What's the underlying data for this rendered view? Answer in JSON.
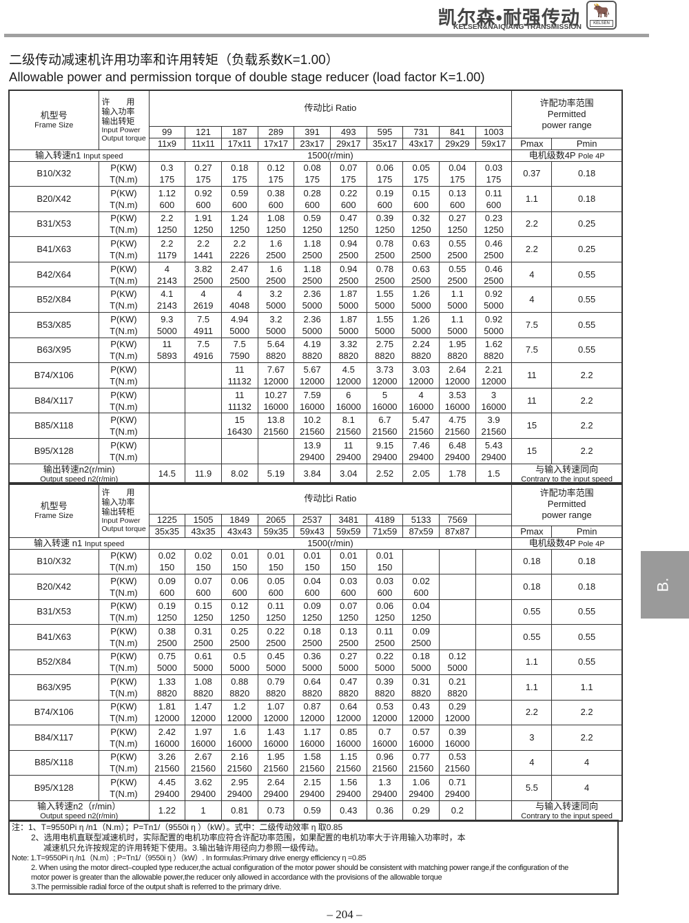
{
  "header": {
    "brand_cn": "凯尔森•耐强传动",
    "brand_en": "KELSEN&NAIQIANG TRANSMISSION",
    "logo_text": "KELSEN"
  },
  "title_cn": "二级传动减速机许用功率和许用转矩（负载系数K=1.00）",
  "title_en": "Allowable power and permission torque of double stage reducer (load factor K=1.00)",
  "labels": {
    "p": "P(KW)",
    "t": "T(N.m)"
  },
  "tables": [
    {
      "frame_cn": "机型号",
      "frame_en": "Frame Size",
      "lh1": "许　　用",
      "lh2": "输入功率",
      "lh3": "输出转矩",
      "lh4": "Input Power",
      "lh5": "Output torque",
      "ratio_title": "传动比i Ratio",
      "permitted_cn": "许配功率范围",
      "permitted_en1": "Permitted",
      "permitted_en2": "power range",
      "pmax": "Pmax",
      "pmin": "Pmin",
      "input_speed_cn": "输入转速n1",
      "input_speed_en": "Input speed",
      "input_speed": "1500(r/min)",
      "pole_cn": "电机级数4P",
      "pole_en": "Pole 4P",
      "ratios": [
        "99",
        "121",
        "187",
        "289",
        "391",
        "493",
        "595",
        "731",
        "841",
        "1003"
      ],
      "sizes": [
        "11x9",
        "11x11",
        "17x11",
        "17x17",
        "23x17",
        "29x17",
        "35x17",
        "43x17",
        "29x29",
        "59x17"
      ],
      "rows": [
        {
          "frame": "B10/X32",
          "p": [
            "0.3",
            "0.27",
            "0.18",
            "0.12",
            "0.08",
            "0.07",
            "0.06",
            "0.05",
            "0.04",
            "0.03"
          ],
          "t": [
            "175",
            "175",
            "175",
            "175",
            "175",
            "175",
            "175",
            "175",
            "175",
            "175"
          ],
          "pmax": "0.37",
          "pmin": "0.18"
        },
        {
          "frame": "B20/X42",
          "p": [
            "1.12",
            "0.92",
            "0.59",
            "0.38",
            "0.28",
            "0.22",
            "0.19",
            "0.15",
            "0.13",
            "0.11"
          ],
          "t": [
            "600",
            "600",
            "600",
            "600",
            "600",
            "600",
            "600",
            "600",
            "600",
            "600"
          ],
          "pmax": "1.1",
          "pmin": "0.18"
        },
        {
          "frame": "B31/X53",
          "p": [
            "2.2",
            "1.91",
            "1.24",
            "1.08",
            "0.59",
            "0.47",
            "0.39",
            "0.32",
            "0.27",
            "0.23"
          ],
          "t": [
            "1250",
            "1250",
            "1250",
            "1250",
            "1250",
            "1250",
            "1250",
            "1250",
            "1250",
            "1250"
          ],
          "pmax": "2.2",
          "pmin": "0.25"
        },
        {
          "frame": "B41/X63",
          "p": [
            "2.2",
            "2.2",
            "2.2",
            "1.6",
            "1.18",
            "0.94",
            "0.78",
            "0.63",
            "0.55",
            "0.46"
          ],
          "t": [
            "1179",
            "1441",
            "2226",
            "2500",
            "2500",
            "2500",
            "2500",
            "2500",
            "2500",
            "2500"
          ],
          "pmax": "2.2",
          "pmin": "0.25"
        },
        {
          "frame": "B42/X64",
          "p": [
            "4",
            "3.82",
            "2.47",
            "1.6",
            "1.18",
            "0.94",
            "0.78",
            "0.63",
            "0.55",
            "0.46"
          ],
          "t": [
            "2143",
            "2500",
            "2500",
            "2500",
            "2500",
            "2500",
            "2500",
            "2500",
            "2500",
            "2500"
          ],
          "pmax": "4",
          "pmin": "0.55"
        },
        {
          "frame": "B52/X84",
          "p": [
            "4.1",
            "4",
            "4",
            "3.2",
            "2.36",
            "1.87",
            "1.55",
            "1.26",
            "1.1",
            "0.92"
          ],
          "t": [
            "2143",
            "2619",
            "4048",
            "5000",
            "5000",
            "5000",
            "5000",
            "5000",
            "5000",
            "5000"
          ],
          "pmax": "4",
          "pmin": "0.55"
        },
        {
          "frame": "B53/X85",
          "p": [
            "9.3",
            "7.5",
            "4.94",
            "3.2",
            "2.36",
            "1.87",
            "1.55",
            "1.26",
            "1.1",
            "0.92"
          ],
          "t": [
            "5000",
            "4911",
            "5000",
            "5000",
            "5000",
            "5000",
            "5000",
            "5000",
            "5000",
            "5000"
          ],
          "pmax": "7.5",
          "pmin": "0.55"
        },
        {
          "frame": "B63/X95",
          "p": [
            "11",
            "7.5",
            "7.5",
            "5.64",
            "4.19",
            "3.32",
            "2.75",
            "2.24",
            "1.95",
            "1.62"
          ],
          "t": [
            "5893",
            "4916",
            "7590",
            "8820",
            "8820",
            "8820",
            "8820",
            "8820",
            "8820",
            "8820"
          ],
          "pmax": "7.5",
          "pmin": "0.55"
        },
        {
          "frame": "B74/X106",
          "p": [
            "",
            "",
            "11",
            "7.67",
            "5.67",
            "4.5",
            "3.73",
            "3.03",
            "2.64",
            "2.21"
          ],
          "t": [
            "",
            "",
            "11132",
            "12000",
            "12000",
            "12000",
            "12000",
            "12000",
            "12000",
            "12000"
          ],
          "pmax": "11",
          "pmin": "2.2"
        },
        {
          "frame": "B84/X117",
          "p": [
            "",
            "",
            "11",
            "10.27",
            "7.59",
            "6",
            "5",
            "4",
            "3.53",
            "3"
          ],
          "t": [
            "",
            "",
            "11132",
            "16000",
            "16000",
            "16000",
            "16000",
            "16000",
            "16000",
            "16000"
          ],
          "pmax": "11",
          "pmin": "2.2"
        },
        {
          "frame": "B85/X118",
          "p": [
            "",
            "",
            "15",
            "13.8",
            "10.2",
            "8.1",
            "6.7",
            "5.47",
            "4.75",
            "3.9"
          ],
          "t": [
            "",
            "",
            "16430",
            "21560",
            "21560",
            "21560",
            "21560",
            "21560",
            "21560",
            "21560"
          ],
          "pmax": "15",
          "pmin": "2.2"
        },
        {
          "frame": "B95/X128",
          "p": [
            "",
            "",
            "",
            "",
            "13.9",
            "11",
            "9.15",
            "7.46",
            "6.48",
            "5.43"
          ],
          "t": [
            "",
            "",
            "",
            "",
            "29400",
            "29400",
            "29400",
            "29400",
            "29400",
            "29400"
          ],
          "pmax": "15",
          "pmin": "2.2"
        }
      ],
      "output_cn": "输出转速n2(r/min)",
      "output_en": "Output speed n2(r/min)",
      "output": [
        "14.5",
        "11.9",
        "8.02",
        "5.19",
        "3.84",
        "3.04",
        "2.52",
        "2.05",
        "1.78",
        "1.5"
      ],
      "direction_cn": "与输入转速同向",
      "direction_en": "Contrary to the input speed"
    },
    {
      "frame_cn": "机型号",
      "frame_en": "Frame Size",
      "lh1": "许　　用",
      "lh2": "输入功率",
      "lh3": "输出转柜",
      "lh4": "Input Power",
      "lh5": "Output torque",
      "ratio_title": "传动比i Ratio",
      "permitted_cn": "许配功率范围",
      "permitted_en1": "Permitted",
      "permitted_en2": "power range",
      "pmax": "Pmax",
      "pmin": "Pmin",
      "input_speed_cn": "输入转速 n1",
      "input_speed_en": "Input speed",
      "input_speed": "1500(r/min)",
      "pole_cn": "电机级数4P",
      "pole_en": "Pole 4P",
      "ratios": [
        "1225",
        "1505",
        "1849",
        "2065",
        "2537",
        "3481",
        "4189",
        "5133",
        "7569",
        ""
      ],
      "sizes": [
        "35x35",
        "43x35",
        "43x43",
        "59x35",
        "59x43",
        "59x59",
        "71x59",
        "87x59",
        "87x87",
        ""
      ],
      "rows": [
        {
          "frame": "B10/X32",
          "p": [
            "0.02",
            "0.02",
            "0.01",
            "0.01",
            "0.01",
            "0.01",
            "0.01",
            "",
            "",
            ""
          ],
          "t": [
            "150",
            "150",
            "150",
            "150",
            "150",
            "150",
            "150",
            "",
            "",
            ""
          ],
          "pmax": "0.18",
          "pmin": "0.18"
        },
        {
          "frame": "B20/X42",
          "p": [
            "0.09",
            "0.07",
            "0.06",
            "0.05",
            "0.04",
            "0.03",
            "0.03",
            "0.02",
            "",
            ""
          ],
          "t": [
            "600",
            "600",
            "600",
            "600",
            "600",
            "600",
            "600",
            "600",
            "",
            ""
          ],
          "pmax": "0.18",
          "pmin": "0.18"
        },
        {
          "frame": "B31/X53",
          "p": [
            "0.19",
            "0.15",
            "0.12",
            "0.11",
            "0.09",
            "0.07",
            "0.06",
            "0.04",
            "",
            ""
          ],
          "t": [
            "1250",
            "1250",
            "1250",
            "1250",
            "1250",
            "1250",
            "1250",
            "1250",
            "",
            ""
          ],
          "pmax": "0.55",
          "pmin": "0.55"
        },
        {
          "frame": "B41/X63",
          "p": [
            "0.38",
            "0.31",
            "0.25",
            "0.22",
            "0.18",
            "0.13",
            "0.11",
            "0.09",
            "",
            ""
          ],
          "t": [
            "2500",
            "2500",
            "2500",
            "2500",
            "2500",
            "2500",
            "2500",
            "2500",
            "",
            ""
          ],
          "pmax": "0.55",
          "pmin": "0.55"
        },
        {
          "frame": "B52/X84",
          "p": [
            "0.75",
            "0.61",
            "0.5",
            "0.45",
            "0.36",
            "0.27",
            "0.22",
            "0.18",
            "0.12",
            ""
          ],
          "t": [
            "5000",
            "5000",
            "5000",
            "5000",
            "5000",
            "5000",
            "5000",
            "5000",
            "5000",
            ""
          ],
          "pmax": "1.1",
          "pmin": "0.55"
        },
        {
          "frame": "B63/X95",
          "p": [
            "1.33",
            "1.08",
            "0.88",
            "0.79",
            "0.64",
            "0.47",
            "0.39",
            "0.31",
            "0.21",
            ""
          ],
          "t": [
            "8820",
            "8820",
            "8820",
            "8820",
            "8820",
            "8820",
            "8820",
            "8820",
            "8820",
            ""
          ],
          "pmax": "1.1",
          "pmin": "1.1"
        },
        {
          "frame": "B74/X106",
          "p": [
            "1.81",
            "1.47",
            "1.2",
            "1.07",
            "0.87",
            "0.64",
            "0.53",
            "0.43",
            "0.29",
            ""
          ],
          "t": [
            "12000",
            "12000",
            "12000",
            "12000",
            "12000",
            "12000",
            "12000",
            "12000",
            "12000",
            ""
          ],
          "pmax": "2.2",
          "pmin": "2.2"
        },
        {
          "frame": "B84/X117",
          "p": [
            "2.42",
            "1.97",
            "1.6",
            "1.43",
            "1.17",
            "0.85",
            "0.7",
            "0.57",
            "0.39",
            ""
          ],
          "t": [
            "16000",
            "16000",
            "16000",
            "16000",
            "16000",
            "16000",
            "16000",
            "16000",
            "16000",
            ""
          ],
          "pmax": "3",
          "pmin": "2.2"
        },
        {
          "frame": "B85/X118",
          "p": [
            "3.26",
            "2.67",
            "2.16",
            "1.95",
            "1.58",
            "1.15",
            "0.96",
            "0.77",
            "0.53",
            ""
          ],
          "t": [
            "21560",
            "21560",
            "21560",
            "21560",
            "21560",
            "21560",
            "21560",
            "21560",
            "21560",
            ""
          ],
          "pmax": "4",
          "pmin": "4"
        },
        {
          "frame": "B95/X128",
          "p": [
            "4.45",
            "3.62",
            "2.95",
            "2.64",
            "2.15",
            "1.56",
            "1.3",
            "1.06",
            "0.71",
            ""
          ],
          "t": [
            "29400",
            "29400",
            "29400",
            "29400",
            "29400",
            "29400",
            "29400",
            "29400",
            "29400",
            ""
          ],
          "pmax": "5.5",
          "pmin": "4"
        }
      ],
      "output_cn": "输入转速n2（r/min）",
      "output_en": "Output speed n2(r/min)",
      "output": [
        "1.22",
        "1",
        "0.81",
        "0.73",
        "0.59",
        "0.43",
        "0.36",
        "0.29",
        "0.2",
        ""
      ],
      "direction_cn": "与输入转速同向",
      "direction_en": "Contrary to the input speed"
    }
  ],
  "notes": {
    "cn1": "注：1、T=9550Pi η /n1（N.m）；P=Tn1/（9550i η ）（kW）。式中：二级传动效率 η 取0.85",
    "cn2": "2、选用电机直联型减速机时，实际配置的电机功率应符合许配功率范围，如果配置的电机功率大于许用输入功率时，本",
    "cn3": "减速机只允许按规定的许用转矩下使用。3.输出轴许用径向力参照一级传动。",
    "en1": "Note: 1.T=9550Pi η /n1（N.m）; P=Tn1/（9550i η ）（kW）. In formulas:Primary drive energy efficiency  η =0.85",
    "en2": "2. When using the motor direct–coupled type reducer,the actual configuration of the motor power should be consistent with matching power range,if the configuration of the",
    "en3": "motor power is greater than the allowable power,the reducer only allowed in accordance with the provisions of the allowable torque",
    "en4": "3.The permissible radial force of the output shaft is referred to the primary drive."
  },
  "page_number": "– 204 –",
  "side_tab": "B."
}
